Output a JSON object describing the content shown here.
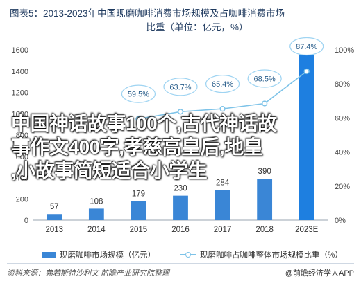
{
  "title_line1": "图表5：2013-2023年中国现磨咖啡消费市场规模及占咖啡消费市场",
  "title_line2": "比重（单位：亿元，%）",
  "overlay": {
    "line1": "中国神话故事100个,古代神话故",
    "line2": "事作文400字,孝慈高皇后,地皇",
    "line3": ",小故事简短适合小学生"
  },
  "legend": {
    "bar": "现磨咖啡市场规模（亿元）",
    "line": "现磨咖啡占咖啡整体市场规模比重（%）"
  },
  "footer": {
    "source": "资料来源：弗若斯特沙利文 前瞻产业研究院整理",
    "brand": "@前瞻经济学人APP"
  },
  "colors": {
    "bar": "#3a86d6",
    "bar_highlight": "#1e7fe0",
    "line": "#7ec3e8",
    "callout": "#9fd4f2"
  },
  "chart_data": {
    "type": "bar",
    "categories": [
      "2013",
      "2014",
      "2015",
      "2016",
      "2017",
      "2018",
      "2023E"
    ],
    "series": [
      {
        "name": "现磨咖啡市场规模（亿元）",
        "type": "bar",
        "axis": "left",
        "values": [
          57,
          108,
          179,
          230,
          284,
          390,
          1579
        ]
      },
      {
        "name": "现磨咖啡占咖啡整体市场规模比重（%）",
        "type": "line",
        "axis": "right",
        "values": [
          null,
          null,
          59.5,
          63.7,
          65.4,
          68.5,
          87.4
        ]
      }
    ],
    "y_left": {
      "ticks": [
        0,
        200,
        400,
        600,
        800,
        1000,
        1200,
        1400,
        1600
      ],
      "lim": [
        0,
        1600
      ]
    },
    "y_right": {
      "ticks": [
        "0%",
        "20%",
        "40%",
        "60%",
        "80%",
        "100%"
      ],
      "lim": [
        0,
        100
      ]
    },
    "grid": false
  }
}
